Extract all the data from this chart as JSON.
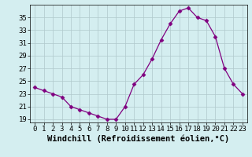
{
  "hours": [
    0,
    1,
    2,
    3,
    4,
    5,
    6,
    7,
    8,
    9,
    10,
    11,
    12,
    13,
    14,
    15,
    16,
    17,
    18,
    19,
    20,
    21,
    22,
    23
  ],
  "windchill": [
    24.0,
    23.5,
    23.0,
    22.5,
    21.0,
    20.5,
    20.0,
    19.5,
    19.0,
    19.0,
    21.0,
    24.5,
    26.0,
    28.5,
    31.5,
    34.0,
    36.0,
    36.5,
    35.0,
    34.5,
    32.0,
    27.0,
    24.5,
    23.0
  ],
  "line_color": "#800080",
  "marker": "D",
  "markersize": 2.5,
  "bg_color": "#d4eef0",
  "grid_color": "#b0c8cc",
  "xlabel": "Windchill (Refroidissement éolien,°C)",
  "ylim": [
    18.5,
    37.0
  ],
  "xlim": [
    -0.5,
    23.5
  ],
  "yticks": [
    19,
    21,
    23,
    25,
    27,
    29,
    31,
    33,
    35
  ],
  "xticks": [
    0,
    1,
    2,
    3,
    4,
    5,
    6,
    7,
    8,
    9,
    10,
    11,
    12,
    13,
    14,
    15,
    16,
    17,
    18,
    19,
    20,
    21,
    22,
    23
  ],
  "xlabel_fontsize": 7.5,
  "tick_fontsize": 6.5,
  "fig_bg": "#d4eef0"
}
